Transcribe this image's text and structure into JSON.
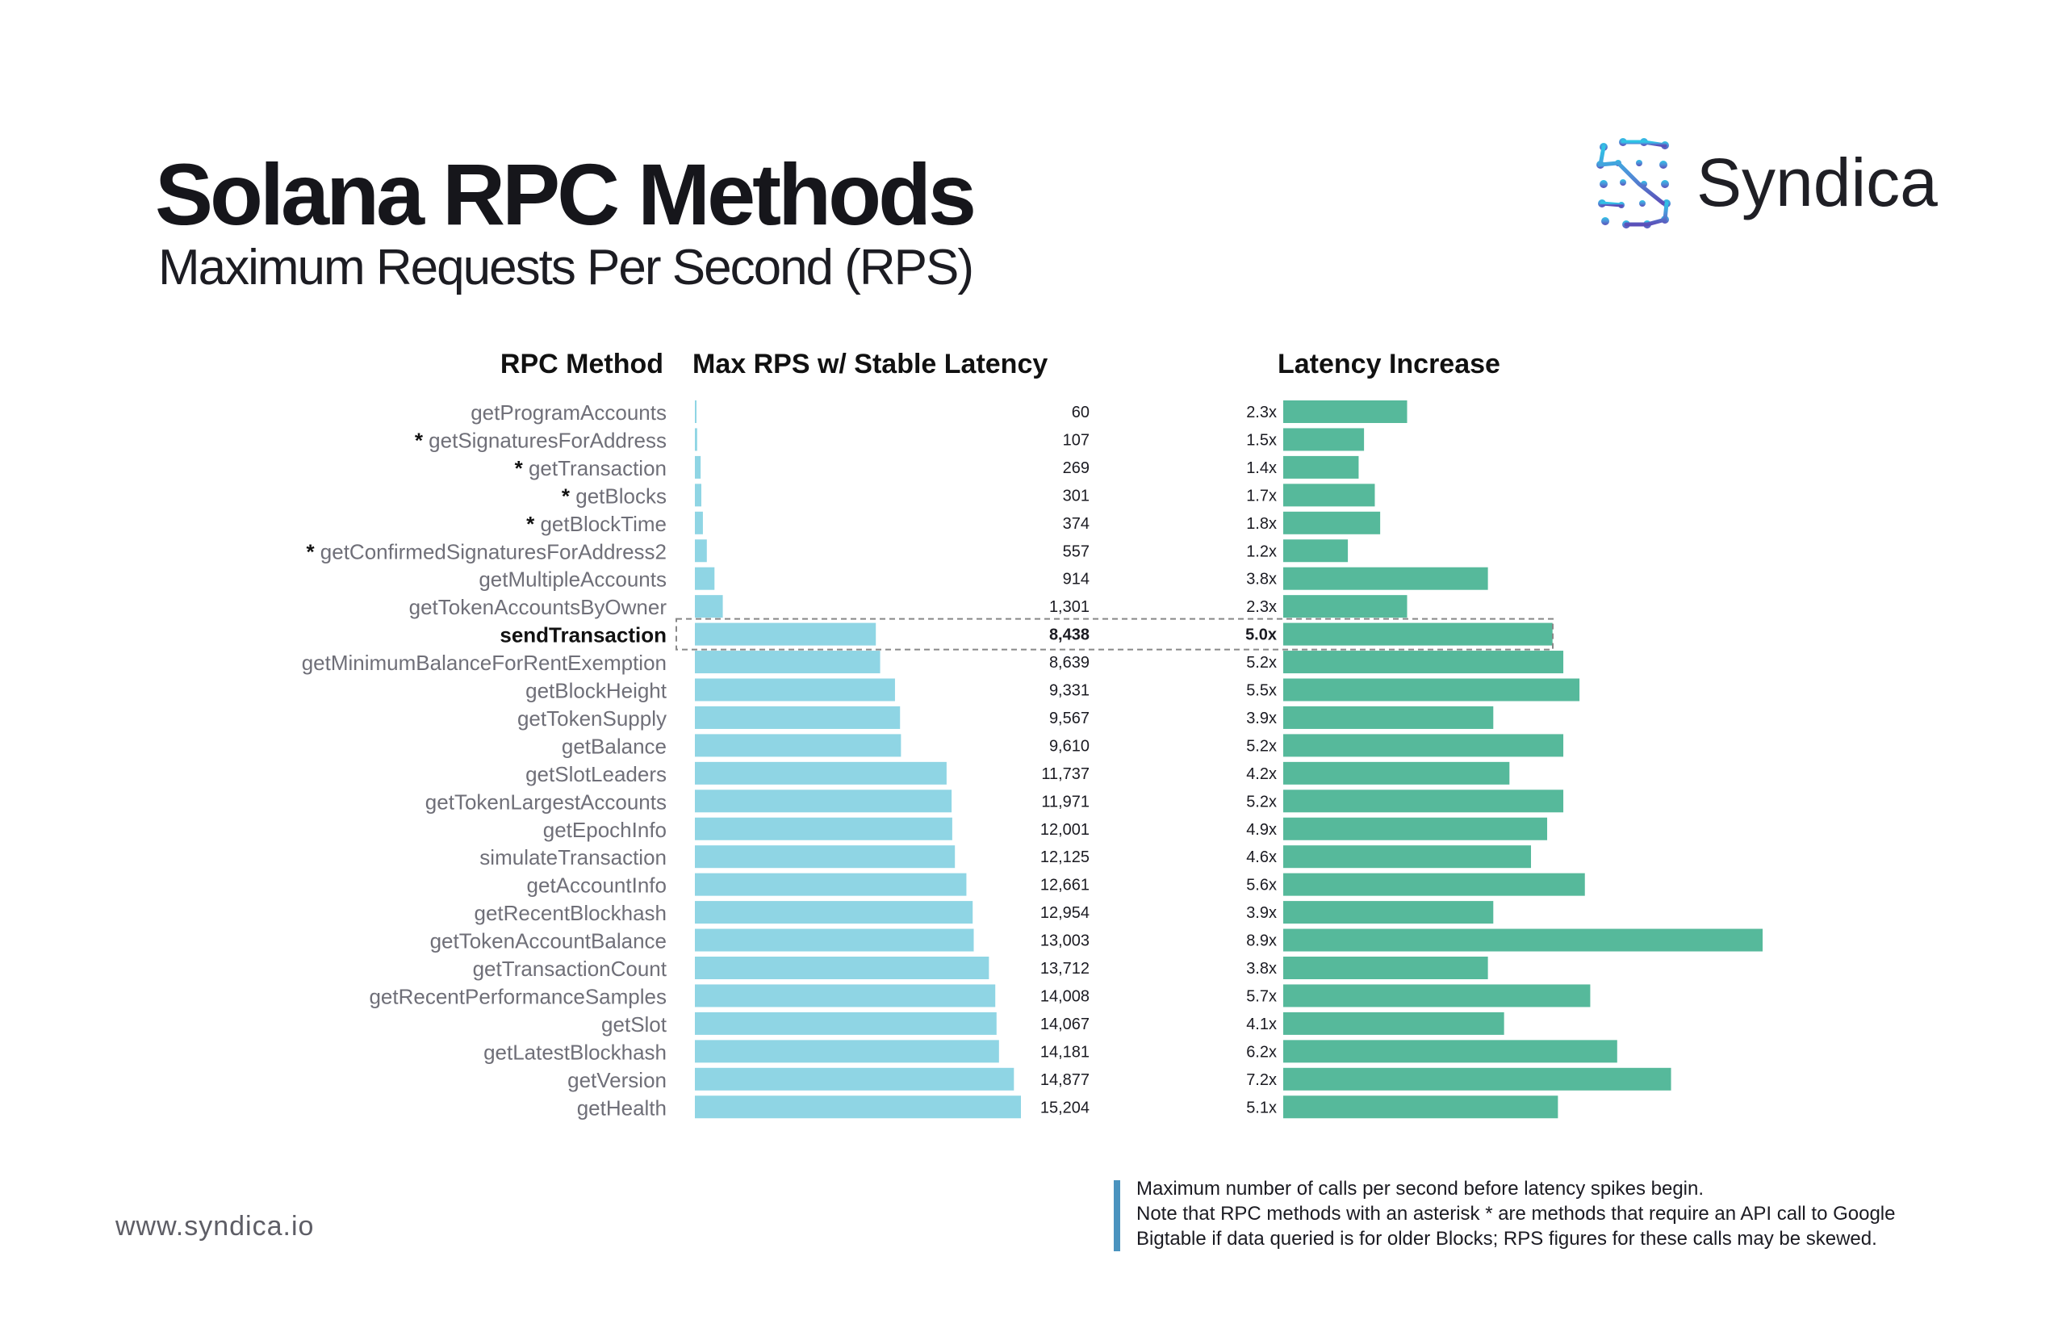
{
  "title": "Solana RPC Methods",
  "subtitle": "Maximum Requests Per Second (RPS)",
  "brand": {
    "name": "Syndica",
    "url": "www.syndica.io"
  },
  "colors": {
    "rps_bar": "#8fd5e4",
    "latency_bar": "#56b99b",
    "highlight_border": "#888888"
  },
  "note": {
    "line1": "Maximum number of calls per second before latency spikes begin.",
    "line2": "Note that RPC methods with an asterisk * are methods that require an API call to Google",
    "line3": "Bigtable if data queried is for older Blocks; RPS figures for these calls may be skewed."
  },
  "chart_data": {
    "type": "bar",
    "orientation": "horizontal",
    "highlighted": "sendTransaction",
    "categories": [
      "getProgramAccounts",
      "* getSignaturesForAddress",
      "* getTransaction",
      "* getBlocks",
      "* getBlockTime",
      "* getConfirmedSignaturesForAddress2",
      "getMultipleAccounts",
      "getTokenAccountsByOwner",
      "sendTransaction",
      "getMinimumBalanceForRentExemption",
      "getBlockHeight",
      "getTokenSupply",
      "getBalance",
      "getSlotLeaders",
      "getTokenLargestAccounts",
      "getEpochInfo",
      "simulateTransaction",
      "getAccountInfo",
      "getRecentBlockhash",
      "getTokenAccountBalance",
      "getTransactionCount",
      "getRecentPerformanceSamples",
      "getSlot",
      "getLatestBlockhash",
      "getVersion",
      "getHealth"
    ],
    "series": [
      {
        "name": "Max RPS w/ Stable Latency",
        "axis_label": "RPC Method",
        "values": [
          60,
          107,
          269,
          301,
          374,
          557,
          914,
          1301,
          8438,
          8639,
          9331,
          9567,
          9610,
          11737,
          11971,
          12001,
          12125,
          12661,
          12954,
          13003,
          13712,
          14008,
          14067,
          14181,
          14877,
          15204
        ],
        "labels": [
          "60",
          "107",
          "269",
          "301",
          "374",
          "557",
          "914",
          "1,301",
          "8,438",
          "8,639",
          "9,331",
          "9,567",
          "9,610",
          "11,737",
          "11,971",
          "12,001",
          "12,125",
          "12,661",
          "12,954",
          "13,003",
          "13,712",
          "14,008",
          "14,067",
          "14,181",
          "14,877",
          "15,204"
        ],
        "xlim": [
          0,
          15204
        ]
      },
      {
        "name": "Latency Increase",
        "values": [
          2.3,
          1.5,
          1.4,
          1.7,
          1.8,
          1.2,
          3.8,
          2.3,
          5.0,
          5.2,
          5.5,
          3.9,
          5.2,
          4.2,
          5.2,
          4.9,
          4.6,
          5.6,
          3.9,
          8.9,
          3.8,
          5.7,
          4.1,
          6.2,
          7.2,
          5.1
        ],
        "labels": [
          "2.3x",
          "1.5x",
          "1.4x",
          "1.7x",
          "1.8x",
          "1.2x",
          "3.8x",
          "2.3x",
          "5.0x",
          "5.2x",
          "5.5x",
          "3.9x",
          "5.2x",
          "4.2x",
          "5.2x",
          "4.9x",
          "4.6x",
          "5.6x",
          "3.9x",
          "8.9x",
          "3.8x",
          "5.7x",
          "4.1x",
          "6.2x",
          "7.2x",
          "5.1x"
        ],
        "xlim": [
          0,
          8.9
        ]
      }
    ]
  }
}
